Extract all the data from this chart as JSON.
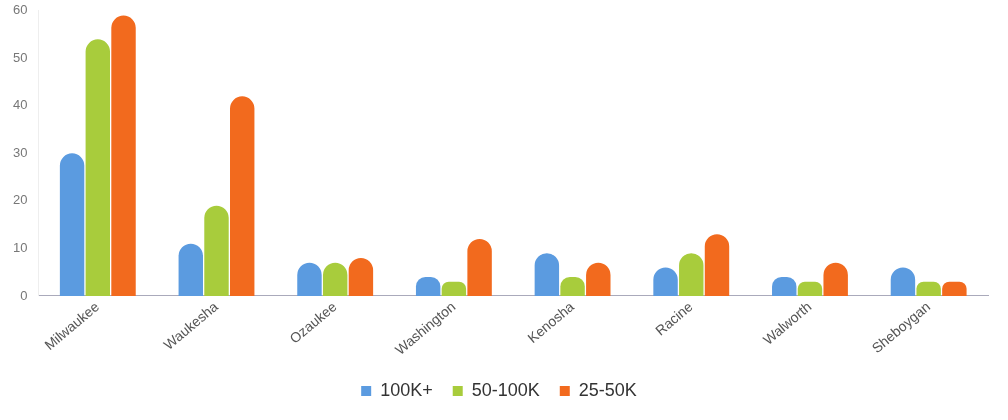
{
  "chart_data": {
    "type": "bar",
    "categories": [
      "Milwaukee",
      "Waukesha",
      "Ozaukee",
      "Washington",
      "Kenosha",
      "Racine",
      "Walworth",
      "Sheboygan"
    ],
    "series": [
      {
        "name": "100K+",
        "color": "#5b9be0",
        "values": [
          30,
          11,
          7,
          4,
          9,
          6,
          4,
          6
        ]
      },
      {
        "name": "50-100K",
        "color": "#a8cc3c",
        "values": [
          54,
          19,
          7,
          3,
          4,
          9,
          3,
          3
        ]
      },
      {
        "name": "25-50K",
        "color": "#f26a1e",
        "values": [
          59,
          42,
          8,
          12,
          7,
          13,
          7,
          3
        ]
      }
    ],
    "ylim": [
      0,
      60
    ],
    "yticks": [
      0,
      10,
      20,
      30,
      40,
      50,
      60
    ],
    "grid": false,
    "legend": "bottom"
  }
}
